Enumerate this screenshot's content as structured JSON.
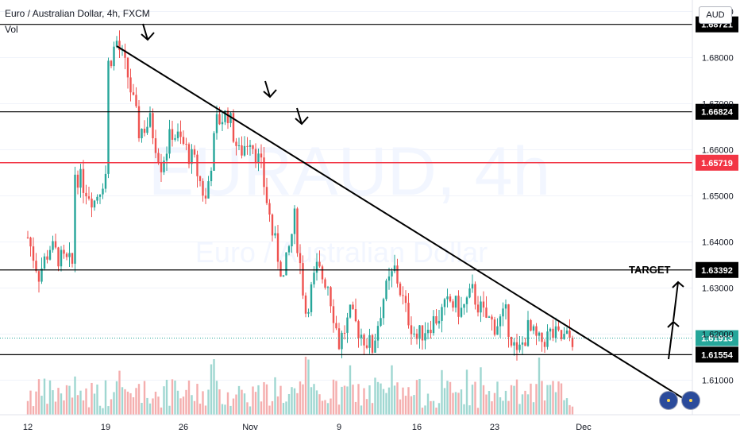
{
  "header": {
    "title": "Euro / Australian Dollar, 4h, FXCM",
    "volume_label": "Vol",
    "currency_badge": "AUD"
  },
  "watermark": {
    "symbol": "EURAUD, 4h",
    "name": "Euro / Australian Dollar"
  },
  "colors": {
    "up": "#26a69a",
    "down": "#ef5350",
    "up_vol": "#9fd7d1",
    "down_vol": "#f4aeae",
    "price_badge": "#26a69a",
    "red_level": "#f23645"
  },
  "annotations": {
    "target_label": "TARGET"
  },
  "chart_data": {
    "type": "candlestick",
    "title": "Euro / Australian Dollar, 4h, FXCM",
    "ylim": [
      1.6025,
      1.6925
    ],
    "y_ticks": [
      "1.61000",
      "1.62000",
      "1.63000",
      "1.64000",
      "1.65000",
      "1.66000",
      "1.67000",
      "1.68000",
      "1.69000"
    ],
    "x_ticks": [
      "12",
      "19",
      "26",
      "Nov",
      "9",
      "16",
      "23",
      "Dec"
    ],
    "horizontal_levels": [
      {
        "price": 1.68721,
        "label": "1.68721",
        "color": "#000000"
      },
      {
        "price": 1.66824,
        "label": "1.66824",
        "color": "#000000"
      },
      {
        "price": 1.65719,
        "label": "1.65719",
        "color": "#f23645"
      },
      {
        "price": 1.63392,
        "label": "1.63392",
        "color": "#000000"
      },
      {
        "price": 1.61554,
        "label": "1.61554",
        "color": "#000000"
      }
    ],
    "last_price": {
      "price": 1.61913,
      "label": "1.61913"
    },
    "trendline": {
      "from_date": "Oct 20",
      "from_price": 1.6825,
      "to_date": "Nov 30",
      "to_price": 1.621
    },
    "swing_points": [
      {
        "date": "Oct 12",
        "price": 1.641
      },
      {
        "date": "Oct 13",
        "price": 1.633
      },
      {
        "date": "Oct 14",
        "price": 1.639
      },
      {
        "date": "Oct 15",
        "price": 1.636
      },
      {
        "date": "Oct 16",
        "price": 1.635
      },
      {
        "date": "Oct 16",
        "price": 1.656
      },
      {
        "date": "Oct 18",
        "price": 1.649
      },
      {
        "date": "Oct 19",
        "price": 1.655
      },
      {
        "date": "Oct 19",
        "price": 1.677
      },
      {
        "date": "Oct 20",
        "price": 1.6835
      },
      {
        "date": "Oct 21",
        "price": 1.676
      },
      {
        "date": "Oct 22",
        "price": 1.664
      },
      {
        "date": "Oct 23",
        "price": 1.666
      },
      {
        "date": "Oct 24",
        "price": 1.657
      },
      {
        "date": "Oct 25",
        "price": 1.664
      },
      {
        "date": "Oct 26",
        "price": 1.661
      },
      {
        "date": "Oct 27",
        "price": 1.657
      },
      {
        "date": "Oct 28",
        "price": 1.649
      },
      {
        "date": "Oct 29",
        "price": 1.666
      },
      {
        "date": "Oct 30",
        "price": 1.668
      },
      {
        "date": "Oct 31",
        "price": 1.659
      },
      {
        "date": "Nov 1",
        "price": 1.663
      },
      {
        "date": "Nov 2",
        "price": 1.656
      },
      {
        "date": "Nov 3",
        "price": 1.642
      },
      {
        "date": "Nov 4",
        "price": 1.632
      },
      {
        "date": "Nov 5",
        "price": 1.645
      },
      {
        "date": "Nov 6",
        "price": 1.625
      },
      {
        "date": "Nov 7",
        "price": 1.634
      },
      {
        "date": "Nov 8",
        "price": 1.631
      },
      {
        "date": "Nov 9",
        "price": 1.618
      },
      {
        "date": "Nov 10",
        "price": 1.624
      },
      {
        "date": "Nov 11",
        "price": 1.62
      },
      {
        "date": "Nov 12",
        "price": 1.617
      },
      {
        "date": "Nov 13",
        "price": 1.628
      },
      {
        "date": "Nov 14",
        "price": 1.634
      },
      {
        "date": "Nov 15",
        "price": 1.625
      },
      {
        "date": "Nov 16",
        "price": 1.619
      },
      {
        "date": "Nov 17",
        "price": 1.622
      },
      {
        "date": "Nov 18",
        "price": 1.624
      },
      {
        "date": "Nov 19",
        "price": 1.627
      },
      {
        "date": "Nov 20",
        "price": 1.625
      },
      {
        "date": "Nov 21",
        "price": 1.629
      },
      {
        "date": "Nov 22",
        "price": 1.624
      },
      {
        "date": "Nov 23",
        "price": 1.622
      },
      {
        "date": "Nov 24",
        "price": 1.624
      },
      {
        "date": "Nov 25",
        "price": 1.615
      },
      {
        "date": "Nov 26",
        "price": 1.621
      },
      {
        "date": "Nov 27",
        "price": 1.618
      },
      {
        "date": "Nov 28",
        "price": 1.62
      },
      {
        "date": "Nov 29",
        "price": 1.619
      },
      {
        "date": "Nov 30",
        "price": 1.6191
      }
    ]
  }
}
